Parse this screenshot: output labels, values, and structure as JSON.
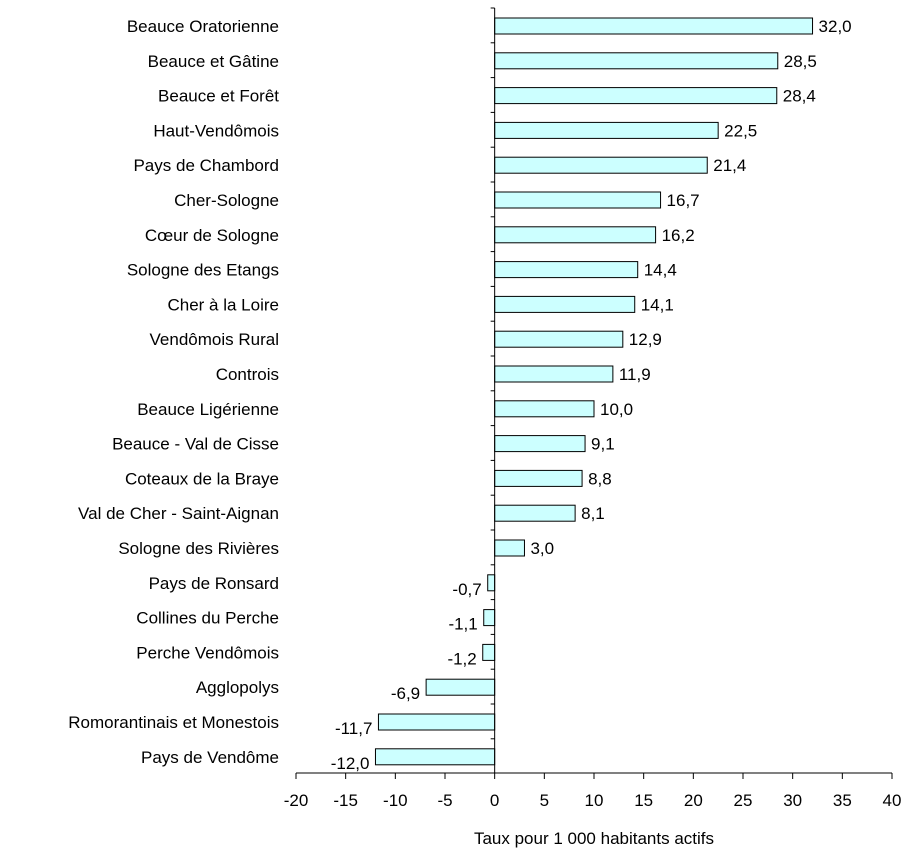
{
  "chart_data": {
    "type": "bar",
    "orientation": "horizontal",
    "categories": [
      "Beauce Oratorienne",
      "Beauce et Gâtine",
      "Beauce et Forêt",
      "Haut-Vendômois",
      "Pays de Chambord",
      "Cher-Sologne",
      "Cœur de Sologne",
      "Sologne des Etangs",
      "Cher à la Loire",
      "Vendômois Rural",
      "Controis",
      "Beauce Ligérienne",
      "Beauce - Val de Cisse",
      "Coteaux de la Braye",
      "Val de Cher - Saint-Aignan",
      "Sologne des Rivières",
      "Pays de Ronsard",
      "Collines du Perche",
      "Perche Vendômois",
      "Agglopolys",
      "Romorantinais et  Monestois",
      "Pays de Vendôme"
    ],
    "values": [
      32.0,
      28.5,
      28.4,
      22.5,
      21.4,
      16.7,
      16.2,
      14.4,
      14.1,
      12.9,
      11.9,
      10.0,
      9.1,
      8.8,
      8.1,
      3.0,
      -0.7,
      -1.1,
      -1.2,
      -6.9,
      -11.7,
      -12.0
    ],
    "value_labels": [
      "32,0",
      "28,5",
      "28,4",
      "22,5",
      "21,4",
      "16,7",
      "16,2",
      "14,4",
      "14,1",
      "12,9",
      "11,9",
      "10,0",
      "9,1",
      "8,8",
      "8,1",
      "3,0",
      "-0,7",
      "-1,1",
      "-1,2",
      "-6,9",
      "-11,7",
      "-12,0"
    ],
    "xlim": [
      -20,
      40
    ],
    "xticks": [
      -20,
      -15,
      -10,
      -5,
      0,
      5,
      10,
      15,
      20,
      25,
      30,
      35,
      40
    ],
    "xtick_labels": [
      "-20",
      "-15",
      "-10",
      "-5",
      "0",
      "5",
      "10",
      "15",
      "20",
      "25",
      "30",
      "35",
      "40"
    ],
    "title": "",
    "xlabel": "Taux pour 1 000 habitants actifs",
    "ylabel": "",
    "grid": false,
    "legend": "none",
    "bar_color": "#ccffff",
    "bar_edge_color": "#000000"
  }
}
